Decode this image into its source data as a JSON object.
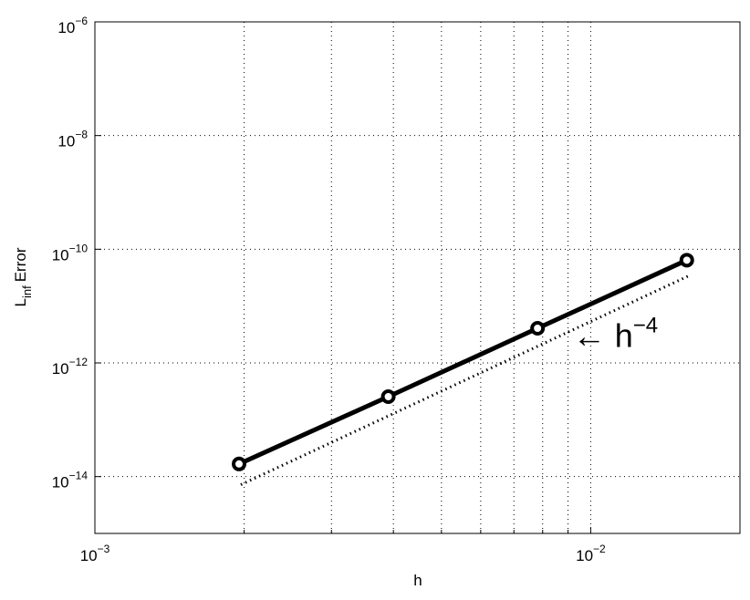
{
  "chart_data": {
    "type": "line",
    "ylabel": {
      "text": "L",
      "subscript": "inf",
      "rest": "Error"
    },
    "xlabel": "h",
    "x": [
      0.001953125,
      0.00390625,
      0.0078125,
      0.015625
    ],
    "series": [
      {
        "color": "#000000",
        "style": "solid",
        "markers": true,
        "values": [
          1.67e-14,
          2.55e-13,
          4.07e-12,
          6.42e-11
        ]
      },
      {
        "color": "#000000",
        "style": "dotted",
        "markers": false,
        "values": [
          7.2e-15,
          null,
          null,
          3.4e-11
        ]
      }
    ],
    "annotation": {
      "text": "← h",
      "superscript": "−4",
      "x": 0.0092,
      "y": 4e-12
    },
    "xscale": "log",
    "yscale": "log",
    "xlim": [
      0.001,
      0.02
    ],
    "ylim": [
      1e-15,
      1e-06
    ],
    "xticks": [
      {
        "value": 0.001,
        "label": "10",
        "exponent": "−3"
      },
      {
        "value": 0.01,
        "label": "10",
        "exponent": "−2"
      }
    ],
    "xminorticks": [
      0.002,
      0.003,
      0.004,
      0.005,
      0.006,
      0.007,
      0.008,
      0.009
    ],
    "yticks": [
      {
        "value": 1e-14,
        "label": "10",
        "exponent": "−14"
      },
      {
        "value": 1e-12,
        "label": "10",
        "exponent": "−12"
      },
      {
        "value": 1e-10,
        "label": "10",
        "exponent": "−10"
      },
      {
        "value": 1e-08,
        "label": "10",
        "exponent": "−8"
      },
      {
        "value": 1e-06,
        "label": "10",
        "exponent": "−6"
      }
    ],
    "grid": true
  }
}
